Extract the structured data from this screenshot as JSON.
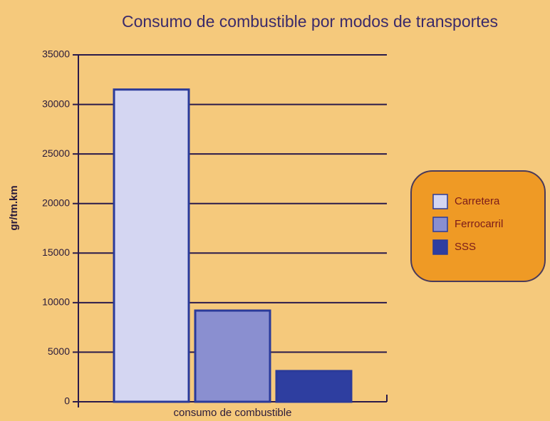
{
  "chart_data": {
    "type": "bar",
    "title": "Consumo de combustible por modos de transportes",
    "y_label": "gr/tm.km",
    "categories": [
      "consumo de combustible"
    ],
    "series": [
      {
        "name": "Carretera",
        "color": "#d4d6f2",
        "values": [
          31500
        ]
      },
      {
        "name": "Ferrocarril",
        "color": "#8a8fd0",
        "values": [
          9200
        ]
      },
      {
        "name": "SSS",
        "color": "#2e3ea0",
        "values": [
          3100
        ]
      }
    ],
    "ylim": [
      0,
      35000
    ],
    "yticks": [
      0,
      5000,
      10000,
      15000,
      20000,
      25000,
      30000,
      35000
    ],
    "grid": true,
    "legend": "right"
  }
}
